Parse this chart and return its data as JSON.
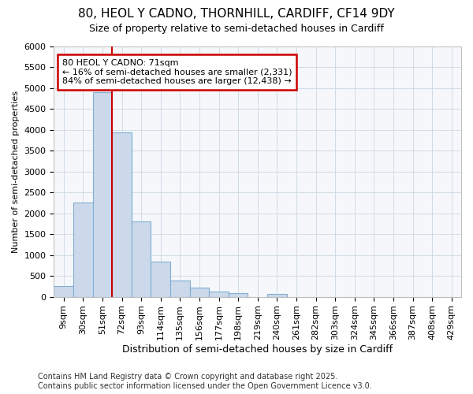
{
  "title_line1": "80, HEOL Y CADNO, THORNHILL, CARDIFF, CF14 9DY",
  "title_line2": "Size of property relative to semi-detached houses in Cardiff",
  "xlabel": "Distribution of semi-detached houses by size in Cardiff",
  "ylabel": "Number of semi-detached properties",
  "footnote": "Contains HM Land Registry data © Crown copyright and database right 2025.\nContains public sector information licensed under the Open Government Licence v3.0.",
  "categories": [
    "9sqm",
    "30sqm",
    "51sqm",
    "72sqm",
    "93sqm",
    "114sqm",
    "135sqm",
    "156sqm",
    "177sqm",
    "198sqm",
    "219sqm",
    "240sqm",
    "261sqm",
    "282sqm",
    "303sqm",
    "324sqm",
    "345sqm",
    "366sqm",
    "387sqm",
    "408sqm",
    "429sqm"
  ],
  "values": [
    250,
    2250,
    4900,
    3950,
    1800,
    850,
    380,
    220,
    125,
    80,
    0,
    70,
    0,
    0,
    0,
    0,
    0,
    0,
    0,
    0,
    0
  ],
  "bar_color": "#ccd9ea",
  "bar_edge_color": "#7fafd4",
  "grid_color": "#d0dce8",
  "bg_color": "#f5f7fa",
  "vline_color": "#cc0000",
  "vline_x_index": 3,
  "annotation_text": "80 HEOL Y CADNO: 71sqm\n← 16% of semi-detached houses are smaller (2,331)\n84% of semi-detached houses are larger (12,438) →",
  "annotation_box_edgecolor": "#cc0000",
  "annotation_box_facecolor": "white",
  "ylim": [
    0,
    6000
  ],
  "yticks": [
    0,
    500,
    1000,
    1500,
    2000,
    2500,
    3000,
    3500,
    4000,
    4500,
    5000,
    5500,
    6000
  ],
  "title_fontsize": 11,
  "subtitle_fontsize": 9,
  "xlabel_fontsize": 9,
  "ylabel_fontsize": 8,
  "tick_fontsize": 8,
  "footnote_fontsize": 7
}
